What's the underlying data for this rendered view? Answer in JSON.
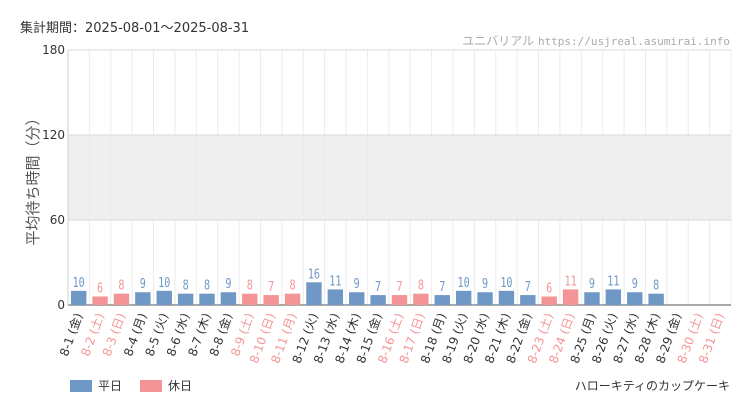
{
  "header": {
    "period": "集計期間：2025-08-01〜2025-08-31",
    "site_name": "ユニバリアル",
    "site_url": "https://usjreal.asumirai.info"
  },
  "footer": {
    "attraction": "ハローキティのカップケーキ"
  },
  "legend": {
    "weekday_label": "平日",
    "holiday_label": "休日"
  },
  "colors": {
    "weekday": "#6f98c6",
    "holiday": "#f59496",
    "band": "#efefef"
  },
  "chart_data": {
    "type": "bar",
    "title": "",
    "ylabel": "平均待ち時間（分）",
    "xlabel": "",
    "ylim": [
      0,
      180
    ],
    "yticks": [
      0,
      60,
      120,
      180
    ],
    "grid": true,
    "categories": [
      "8-1 (金)",
      "8-2 (土)",
      "8-3 (日)",
      "8-4 (月)",
      "8-5 (火)",
      "8-6 (水)",
      "8-7 (木)",
      "8-8 (金)",
      "8-9 (土)",
      "8-10 (日)",
      "8-11 (月)",
      "8-12 (火)",
      "8-13 (水)",
      "8-14 (木)",
      "8-15 (金)",
      "8-16 (土)",
      "8-17 (日)",
      "8-18 (月)",
      "8-19 (火)",
      "8-20 (水)",
      "8-21 (木)",
      "8-22 (金)",
      "8-23 (土)",
      "8-24 (日)",
      "8-25 (月)",
      "8-26 (火)",
      "8-27 (水)",
      "8-28 (木)",
      "8-29 (金)",
      "8-30 (土)",
      "8-31 (日)"
    ],
    "values": [
      10,
      6,
      8,
      9,
      10,
      8,
      8,
      9,
      8,
      7,
      8,
      16,
      11,
      9,
      7,
      7,
      8,
      7,
      10,
      9,
      10,
      7,
      6,
      11,
      9,
      11,
      9,
      8,
      null,
      null,
      null
    ],
    "day_type": [
      "weekday",
      "holiday",
      "holiday",
      "weekday",
      "weekday",
      "weekday",
      "weekday",
      "weekday",
      "holiday",
      "holiday",
      "holiday",
      "weekday",
      "weekday",
      "weekday",
      "weekday",
      "holiday",
      "holiday",
      "weekday",
      "weekday",
      "weekday",
      "weekday",
      "weekday",
      "holiday",
      "holiday",
      "weekday",
      "weekday",
      "weekday",
      "weekday",
      "weekday",
      "holiday",
      "holiday"
    ],
    "legend_position": "bottom-left"
  }
}
